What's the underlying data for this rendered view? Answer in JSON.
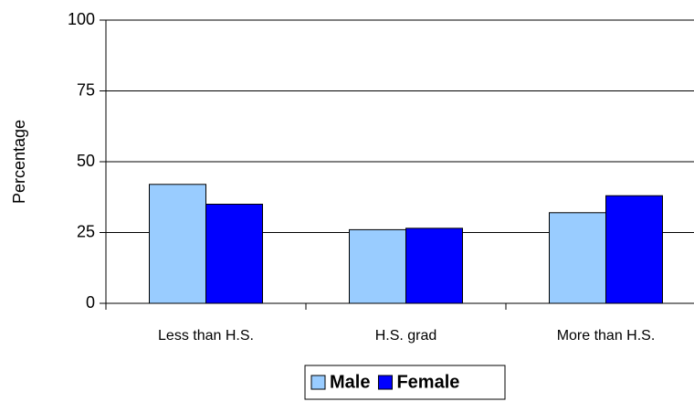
{
  "chart_data": {
    "type": "bar",
    "y_label": "Percentage",
    "categories": [
      "Less than H.S.",
      "H.S. grad",
      "More than H.S."
    ],
    "series": [
      {
        "name": "Male",
        "color": "#99ccff",
        "values": [
          42,
          26,
          32
        ]
      },
      {
        "name": "Female",
        "color": "#0000ff",
        "values": [
          35,
          26.5,
          38
        ]
      }
    ],
    "ylim": [
      0,
      100
    ],
    "yticks": [
      0,
      25,
      50,
      75,
      100
    ],
    "grid": true,
    "legend": "bottom"
  }
}
